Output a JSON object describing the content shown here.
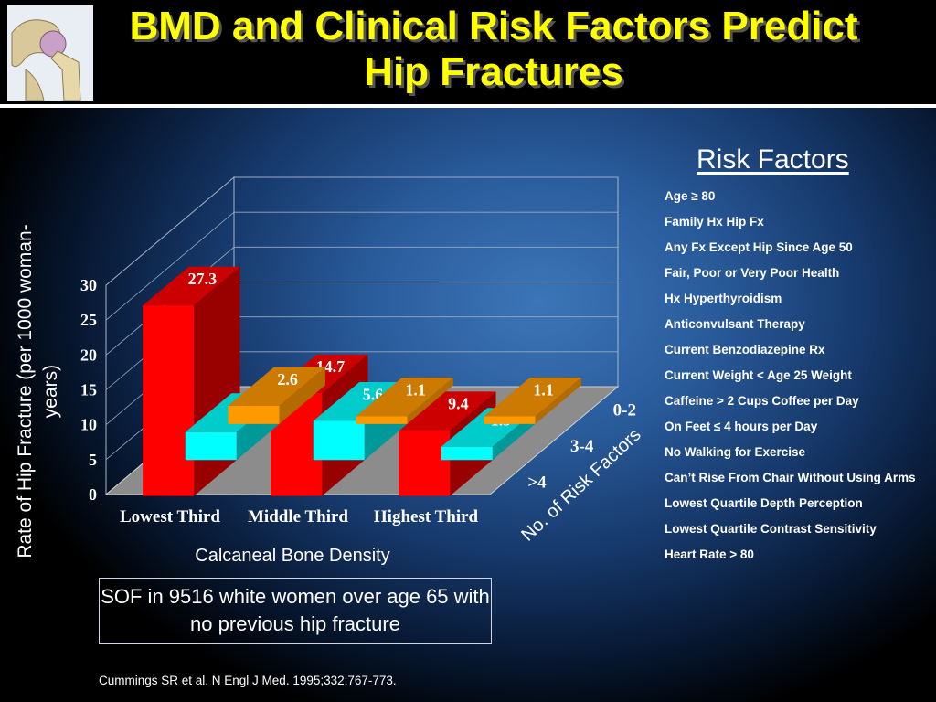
{
  "slide": {
    "title": "BMD and Clinical Risk Factors Predict Hip Fractures",
    "note": "SOF in 9516 white women over age 65 with no previous hip fracture",
    "citation": "Cummings SR et al. N Engl J Med. 1995;332:767-773."
  },
  "risk_factors": {
    "title": "Risk Factors",
    "items": [
      "Age ≥ 80",
      "Family Hx Hip Fx",
      "Any Fx Except Hip Since Age 50",
      "Fair, Poor or Very Poor Health",
      "Hx Hyperthyroidism",
      "Anticonvulsant Therapy",
      "Current Benzodiazepine Rx",
      "Current Weight < Age 25 Weight",
      "Caffeine > 2 Cups Coffee per Day",
      "On Feet ≤ 4 hours per Day",
      "No Walking for Exercise",
      "Can’t Rise From Chair Without Using Arms",
      "Lowest Quartile Depth Perception",
      "Lowest Quartile Contrast Sensitivity",
      "Heart Rate > 80"
    ]
  },
  "chart_data": {
    "type": "bar",
    "ylabel": "Rate of Hip Fracture (per 1000 woman-years)",
    "xlabel": "Calcaneal Bone Density",
    "zlabel": "No. of Risk Factors",
    "ylim": [
      0,
      30
    ],
    "yticks": [
      0,
      5,
      10,
      15,
      20,
      25,
      30
    ],
    "categories": [
      "Lowest Third",
      "Middle Third",
      "Highest Third"
    ],
    "series": [
      {
        "name": "0-2",
        "values": [
          2.6,
          1.1,
          1.1
        ],
        "colors": {
          "front": "#ff9900",
          "top": "#cc7a00",
          "side": "#b36b00"
        }
      },
      {
        "name": "3-4",
        "values": [
          4.0,
          5.6,
          1.9
        ],
        "colors": {
          "front": "#00ffff",
          "top": "#00cccc",
          "side": "#009999"
        }
      },
      {
        "name": ">4",
        "values": [
          27.3,
          14.7,
          9.4
        ],
        "colors": {
          "front": "#ff0000",
          "top": "#cc0000",
          "side": "#990000"
        }
      }
    ],
    "legend": "depth axis",
    "grid": true,
    "label_color": "#ffffff"
  }
}
